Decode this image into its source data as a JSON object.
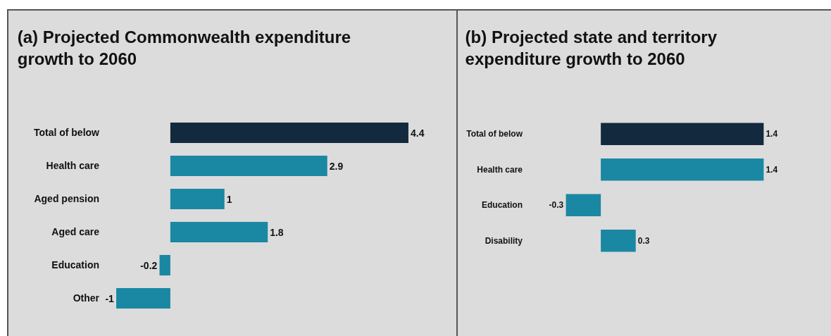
{
  "chart_data": [
    {
      "type": "bar",
      "orientation": "horizontal",
      "title": "(a) Projected Commonwealth expenditure growth to 2060",
      "categories": [
        "Total of below",
        "Health care",
        "Aged pension",
        "Aged care",
        "Education",
        "Other"
      ],
      "values": [
        4.4,
        2.9,
        1,
        1.8,
        -0.2,
        -1
      ],
      "colors": [
        "#13293d",
        "#1a87a3",
        "#1a87a3",
        "#1a87a3",
        "#1a87a3",
        "#1a87a3"
      ],
      "data_labels": true
    },
    {
      "type": "bar",
      "orientation": "horizontal",
      "title": "(b) Projected state and territory expenditure growth to 2060",
      "categories": [
        "Total of below",
        "Health care",
        "Education",
        "Disability"
      ],
      "values": [
        1.4,
        1.4,
        -0.3,
        0.3
      ],
      "colors": [
        "#13293d",
        "#1a87a3",
        "#1a87a3",
        "#1a87a3"
      ],
      "data_labels": true
    }
  ]
}
